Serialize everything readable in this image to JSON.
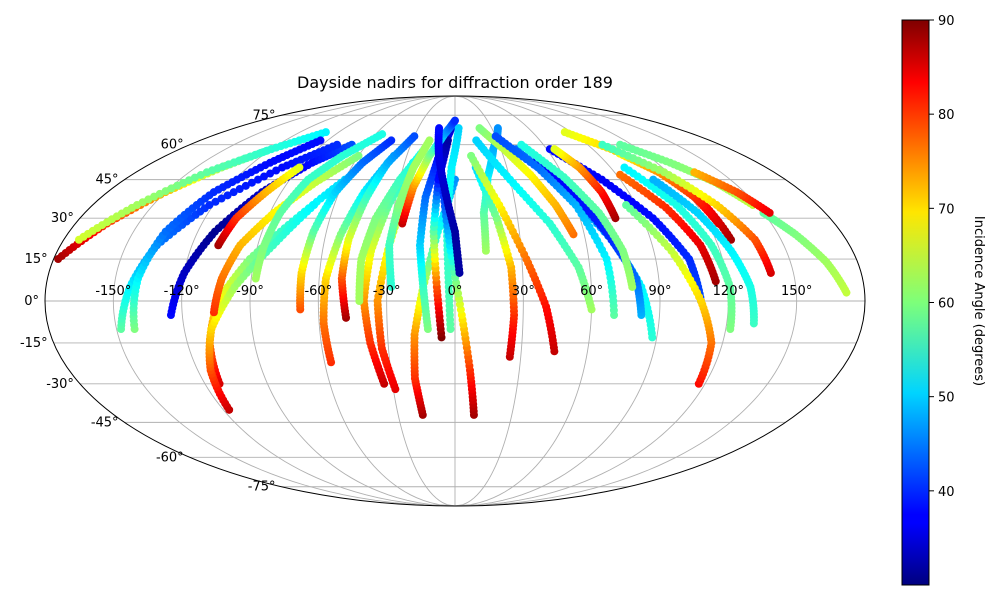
{
  "chart_data": {
    "type": "scatter",
    "projection": "mollweide",
    "title": "Dayside nadirs for diffraction order 189",
    "xlabel": "",
    "ylabel": "",
    "grid": true,
    "xlim": [
      -180,
      180
    ],
    "ylim": [
      -90,
      90
    ],
    "lon_ticks": [
      -150,
      -120,
      -90,
      -60,
      -30,
      0,
      30,
      60,
      90,
      120,
      150
    ],
    "lon_tick_labels": [
      "-150°",
      "-120°",
      "-90°",
      "-60°",
      "-30°",
      "0°",
      "30°",
      "60°",
      "90°",
      "120°",
      "150°"
    ],
    "lat_ticks": [
      75,
      60,
      45,
      30,
      15,
      0,
      -15,
      -30,
      -45,
      -60,
      -75
    ],
    "lat_tick_labels": [
      "75°",
      "60°",
      "45°",
      "30°",
      "15°",
      "0°",
      "-15°",
      "-30°",
      "-45°",
      "-60°",
      "-75°"
    ],
    "colorbar": {
      "label": "Incidence Angle (degrees)",
      "colormap": "jet",
      "vmin": 30,
      "vmax": 90,
      "ticks": [
        40,
        50,
        60,
        70,
        80,
        90
      ],
      "tick_labels": [
        "40",
        "50",
        "60",
        "70",
        "80",
        "90"
      ],
      "placement": "right"
    },
    "series": [
      {
        "lon": [
          -178,
          -165,
          -150,
          -135,
          -120
        ],
        "lat": [
          15,
          28,
          40,
          50,
          58
        ],
        "inc": [
          88,
          80,
          72,
          62,
          54
        ]
      },
      {
        "lon": [
          -173,
          -158,
          -140,
          -120,
          -100
        ],
        "lat": [
          22,
          35,
          48,
          58,
          66
        ],
        "inc": [
          65,
          62,
          58,
          55,
          52
        ]
      },
      {
        "lon": [
          -125,
          -120,
          -112,
          -100,
          -85,
          -70
        ],
        "lat": [
          -5,
          10,
          25,
          40,
          52,
          60
        ],
        "inc": [
          38,
          34,
          31,
          34,
          38,
          42
        ]
      },
      {
        "lon": [
          -148,
          -143,
          -136,
          -122,
          -100,
          -80
        ],
        "lat": [
          -10,
          5,
          20,
          35,
          50,
          60
        ],
        "inc": [
          58,
          52,
          45,
          40,
          38,
          40
        ]
      },
      {
        "lon": [
          -142,
          -140,
          -135,
          -125,
          -110,
          -95
        ],
        "lat": [
          -10,
          8,
          25,
          40,
          52,
          62
        ],
        "inc": [
          60,
          52,
          44,
          40,
          38,
          38
        ]
      },
      {
        "lon": [
          -113,
          -110,
          -104,
          -92,
          -76,
          -60
        ],
        "lat": [
          -30,
          -15,
          0,
          15,
          30,
          45
        ],
        "inc": [
          85,
          76,
          68,
          60,
          54,
          50
        ]
      },
      {
        "lon": [
          -117,
          -114,
          -108,
          -97,
          -83,
          -70
        ],
        "lat": [
          -40,
          -25,
          -10,
          5,
          20,
          35
        ],
        "inc": [
          86,
          78,
          70,
          62,
          56,
          52
        ]
      },
      {
        "lon": [
          -106,
          -103,
          -98,
          -88,
          -75,
          -60
        ],
        "lat": [
          -4,
          8,
          20,
          32,
          44,
          55
        ],
        "inc": [
          80,
          76,
          72,
          68,
          64,
          60
        ]
      },
      {
        "lon": [
          -108,
          -105,
          -98,
          -90
        ],
        "lat": [
          20,
          30,
          40,
          50
        ],
        "inc": [
          88,
          80,
          72,
          66
        ]
      },
      {
        "lon": [
          -88,
          -87,
          -85,
          -80,
          -70,
          -55
        ],
        "lat": [
          8,
          20,
          32,
          45,
          55,
          65
        ],
        "inc": [
          62,
          60,
          58,
          56,
          55,
          54
        ]
      },
      {
        "lon": [
          -68,
          -68,
          -66,
          -62,
          -55,
          -45
        ],
        "lat": [
          -3,
          10,
          25,
          40,
          52,
          62
        ],
        "inc": [
          78,
          70,
          58,
          50,
          44,
          40
        ]
      },
      {
        "lon": [
          -57,
          -58,
          -57,
          -53,
          -47,
          -38
        ],
        "lat": [
          -22,
          -8,
          8,
          24,
          40,
          55
        ],
        "inc": [
          80,
          76,
          70,
          60,
          52,
          46
        ]
      },
      {
        "lon": [
          -48,
          -50,
          -49,
          -45,
          -40,
          -30
        ],
        "lat": [
          -6,
          8,
          22,
          38,
          52,
          64
        ],
        "inc": [
          88,
          78,
          66,
          56,
          48,
          42
        ]
      },
      {
        "lon": [
          -34,
          -38,
          -40,
          -38,
          -33,
          -25
        ],
        "lat": [
          -30,
          -15,
          0,
          18,
          35,
          52
        ],
        "inc": [
          86,
          80,
          74,
          66,
          58,
          52
        ]
      },
      {
        "lon": [
          -29,
          -33,
          -34,
          -30,
          -25
        ],
        "lat": [
          -32,
          -17,
          0,
          20,
          40
        ],
        "inc": [
          84,
          80,
          74,
          66,
          60
        ]
      },
      {
        "lon": [
          -42,
          -42,
          -38,
          -30,
          -20
        ],
        "lat": [
          0,
          15,
          30,
          45,
          58
        ],
        "inc": [
          62,
          62,
          60,
          56,
          52
        ]
      },
      {
        "lon": [
          -28,
          -30,
          -28,
          -24,
          -18
        ],
        "lat": [
          5,
          20,
          35,
          50,
          62
        ],
        "inc": [
          55,
          56,
          60,
          62,
          62
        ]
      },
      {
        "lon": [
          -17,
          -19,
          -18,
          -14,
          -8,
          0
        ],
        "lat": [
          -42,
          -28,
          -12,
          5,
          25,
          45
        ],
        "inc": [
          88,
          80,
          74,
          64,
          54,
          46
        ]
      },
      {
        "lon": [
          -12,
          -14,
          -16,
          -15,
          -10,
          -3
        ],
        "lat": [
          -10,
          5,
          20,
          38,
          55,
          68
        ],
        "inc": [
          60,
          56,
          50,
          44,
          38,
          35
        ]
      },
      {
        "lon": [
          -6,
          -8,
          -10,
          -9,
          -5
        ],
        "lat": [
          -13,
          5,
          25,
          45,
          62
        ],
        "inc": [
          90,
          78,
          58,
          38,
          32
        ]
      },
      {
        "lon": [
          -25,
          -22,
          -16,
          -8,
          0
        ],
        "lat": [
          28,
          42,
          55,
          65,
          72
        ],
        "inc": [
          86,
          74,
          60,
          48,
          40
        ]
      },
      {
        "lon": [
          -2,
          -3,
          -4,
          -2,
          3
        ],
        "lat": [
          -10,
          10,
          30,
          50,
          68
        ],
        "inc": [
          58,
          56,
          54,
          52,
          50
        ]
      },
      {
        "lon": [
          10,
          7,
          3,
          -2,
          -6
        ],
        "lat": [
          -42,
          -25,
          -5,
          18,
          40
        ],
        "inc": [
          88,
          80,
          68,
          52,
          40
        ]
      },
      {
        "lon": [
          2,
          0,
          -5,
          -10,
          -13
        ],
        "lat": [
          10,
          25,
          40,
          55,
          68
        ],
        "inc": [
          32,
          32,
          34,
          36,
          38
        ]
      },
      {
        "lon": [
          14,
          14,
          18,
          25,
          35
        ],
        "lat": [
          18,
          32,
          46,
          58,
          68
        ],
        "inc": [
          62,
          58,
          52,
          48,
          46
        ]
      },
      {
        "lon": [
          25,
          26,
          25,
          20,
          12
        ],
        "lat": [
          -20,
          -5,
          12,
          30,
          50
        ],
        "inc": [
          86,
          80,
          72,
          60,
          50
        ]
      },
      {
        "lon": [
          45,
          40,
          32,
          22,
          10
        ],
        "lat": [
          -18,
          -2,
          15,
          35,
          55
        ],
        "inc": [
          86,
          82,
          76,
          68,
          60
        ]
      },
      {
        "lon": [
          55,
          50,
          42,
          32,
          20
        ],
        "lat": [
          24,
          35,
          47,
          58,
          68
        ],
        "inc": [
          76,
          72,
          68,
          64,
          60
        ]
      },
      {
        "lon": [
          60,
          55,
          45,
          30,
          15
        ],
        "lat": [
          -3,
          12,
          28,
          45,
          62
        ],
        "inc": [
          62,
          58,
          55,
          52,
          50
        ]
      },
      {
        "lon": [
          88,
          82,
          72,
          58,
          40
        ],
        "lat": [
          -13,
          5,
          22,
          40,
          58
        ],
        "inc": [
          55,
          52,
          48,
          45,
          44
        ]
      },
      {
        "lon": [
          82,
          80,
          72,
          62,
          50
        ],
        "lat": [
          -5,
          8,
          22,
          38,
          54
        ],
        "inc": [
          48,
          44,
          40,
          38,
          37
        ]
      },
      {
        "lon": [
          70,
          68,
          60,
          48,
          30
        ],
        "lat": [
          -5,
          15,
          35,
          50,
          64
        ],
        "inc": [
          58,
          52,
          48,
          44,
          42
        ]
      },
      {
        "lon": [
          78,
          76,
          70,
          60,
          45
        ],
        "lat": [
          5,
          18,
          32,
          46,
          60
        ],
        "inc": [
          62,
          60,
          58,
          56,
          54
        ]
      },
      {
        "lon": [
          108,
          105,
          95,
          80,
          62
        ],
        "lat": [
          0,
          15,
          30,
          45,
          58
        ],
        "inc": [
          42,
          40,
          38,
          37,
          38
        ]
      },
      {
        "lon": [
          117,
          115,
          108,
          98,
          85
        ],
        "lat": [
          -30,
          -15,
          0,
          18,
          35
        ],
        "inc": [
          82,
          76,
          70,
          64,
          58
        ]
      },
      {
        "lon": [
          122,
          121,
          117,
          110,
          98
        ],
        "lat": [
          -10,
          5,
          20,
          35,
          50
        ],
        "inc": [
          60,
          58,
          56,
          54,
          52
        ]
      },
      {
        "lon": [
          127,
          124,
          116,
          102,
          85
        ],
        "lat": [
          22,
          35,
          48,
          58,
          66
        ],
        "inc": [
          88,
          82,
          76,
          70,
          66
        ]
      },
      {
        "lon": [
          125,
          122,
          115,
          104
        ],
        "lat": [
          28,
          38,
          48,
          56
        ],
        "inc": [
          85,
          80,
          74,
          68
        ]
      },
      {
        "lon": [
          140,
          138,
          130,
          118,
          100
        ],
        "lat": [
          10,
          22,
          35,
          48,
          60
        ],
        "inc": [
          85,
          78,
          70,
          62,
          56
        ]
      },
      {
        "lon": [
          132,
          130,
          125,
          118,
          108
        ],
        "lat": [
          -8,
          5,
          18,
          32,
          45
        ],
        "inc": [
          56,
          54,
          52,
          50,
          48
        ]
      },
      {
        "lon": [
          115,
          112,
          104,
          92
        ],
        "lat": [
          7,
          20,
          34,
          47
        ],
        "inc": [
          88,
          84,
          80,
          76
        ]
      },
      {
        "lon": [
          77,
          76,
          72,
          65
        ],
        "lat": [
          30,
          40,
          50,
          58
        ],
        "inc": [
          88,
          82,
          74,
          66
        ]
      },
      {
        "lon": [
          148,
          140,
          128,
          112
        ],
        "lat": [
          35,
          44,
          52,
          60
        ],
        "inc": [
          64,
          62,
          60,
          58
        ]
      },
      {
        "lon": [
          172,
          166,
          158,
          150
        ],
        "lat": [
          3,
          14,
          24,
          32
        ],
        "inc": [
          64,
          62,
          60,
          58
        ]
      },
      {
        "lon": [
          153,
          146,
          135
        ],
        "lat": [
          32,
          40,
          48
        ],
        "inc": [
          84,
          78,
          72
        ]
      }
    ]
  }
}
